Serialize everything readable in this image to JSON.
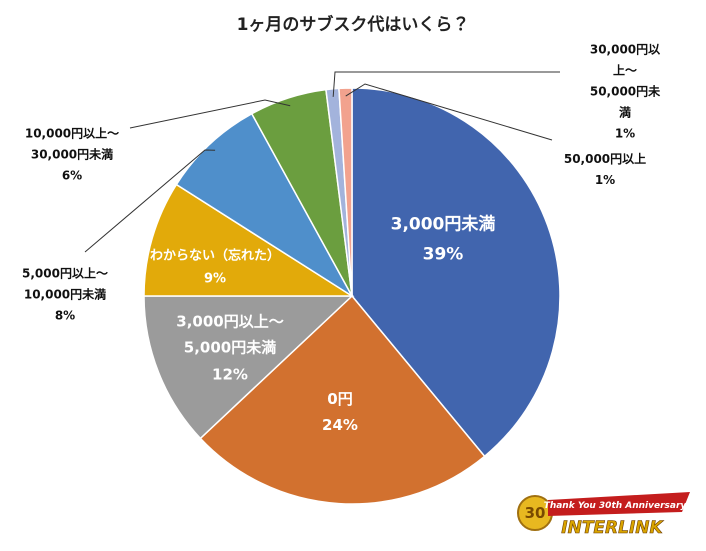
{
  "chart_data": {
    "type": "pie",
    "title": "1ヶ月のサブスク代はいくら？",
    "categories": [
      "3,000円未満",
      "0円",
      "3,000円以上～\n5,000円未満",
      "わからない（忘れた）",
      "5,000円以上～\n10,000円未満",
      "10,000円以上～\n30,000円未満",
      "30,000円以上～\n50,000円未満",
      "50,000円以上"
    ],
    "values": [
      39,
      24,
      12,
      9,
      8,
      6,
      1,
      1
    ],
    "value_labels": [
      "39%",
      "24%",
      "12%",
      "9%",
      "8%",
      "6%",
      "1%",
      "1%"
    ],
    "colors": [
      "#4165ae",
      "#d2712f",
      "#9b9b9b",
      "#e2aa0a",
      "#4f8fcb",
      "#6b9e3f",
      "#a3b3dc",
      "#f2a28e"
    ]
  },
  "logo": {
    "badge": "30",
    "banner": "Thank You 30th Anniversary",
    "brand": "INTERLINK"
  }
}
